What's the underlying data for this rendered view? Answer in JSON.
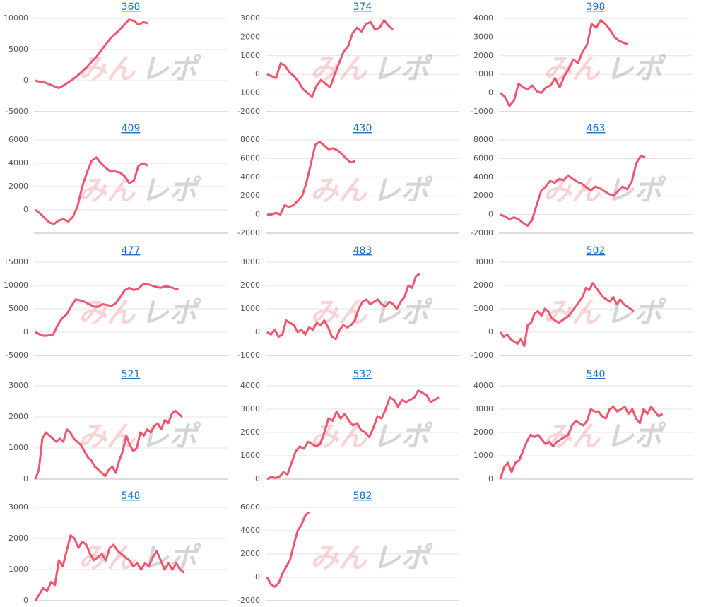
{
  "watermark": {
    "left": "みん",
    "right": "レポ"
  },
  "chart_data": [
    {
      "type": "line",
      "title": "368",
      "color": "#f2566f",
      "ylim": [
        -5000,
        10000
      ],
      "yticks": [
        -5000,
        0,
        5000,
        10000
      ],
      "grid": true,
      "values": [
        0,
        -200,
        -300,
        -600,
        -900,
        -1200,
        -800,
        -300,
        200,
        800,
        1500,
        2200,
        3000,
        3800,
        4800,
        5800,
        6800,
        7500,
        8200,
        9000,
        9800,
        9600,
        9000,
        9400,
        9200
      ]
    },
    {
      "type": "line",
      "title": "374",
      "color": "#f2566f",
      "ylim": [
        -2000,
        3000
      ],
      "yticks": [
        -2000,
        -1000,
        0,
        1000,
        2000,
        3000
      ],
      "grid": true,
      "values": [
        0,
        -100,
        -200,
        600,
        450,
        100,
        -100,
        -400,
        -800,
        -1000,
        -1200,
        -600,
        -300,
        -500,
        -700,
        0,
        600,
        1200,
        1500,
        2200,
        2500,
        2300,
        2700,
        2800,
        2400,
        2500,
        2900,
        2600,
        2400
      ]
    },
    {
      "type": "line",
      "title": "398",
      "color": "#f2566f",
      "ylim": [
        -1000,
        4000
      ],
      "yticks": [
        -1000,
        0,
        1000,
        2000,
        3000,
        4000
      ],
      "grid": true,
      "values": [
        0,
        -200,
        -700,
        -400,
        500,
        300,
        200,
        400,
        100,
        0,
        300,
        400,
        800,
        300,
        900,
        1300,
        1800,
        1600,
        2200,
        2600,
        3700,
        3500,
        3900,
        3700,
        3400,
        3000,
        2800,
        2700,
        2600
      ]
    },
    {
      "type": "line",
      "title": "409",
      "color": "#f2566f",
      "ylim": [
        -2000,
        6000
      ],
      "yticks": [
        0,
        2000,
        4000,
        6000
      ],
      "grid": true,
      "values": [
        0,
        -300,
        -700,
        -1100,
        -1200,
        -900,
        -800,
        -1000,
        -600,
        300,
        2000,
        3200,
        4200,
        4500,
        4000,
        3600,
        3300,
        3300,
        3200,
        2900,
        2300,
        2500,
        3800,
        4000,
        3800
      ]
    },
    {
      "type": "line",
      "title": "430",
      "color": "#f2566f",
      "ylim": [
        -2000,
        8000
      ],
      "yticks": [
        -2000,
        0,
        2000,
        4000,
        6000,
        8000
      ],
      "grid": true,
      "values": [
        0,
        0,
        200,
        0,
        1000,
        800,
        1000,
        1500,
        2000,
        3500,
        5500,
        7500,
        7800,
        7400,
        7000,
        7100,
        6900,
        6500,
        6000,
        5600,
        5700
      ]
    },
    {
      "type": "line",
      "title": "463",
      "color": "#f2566f",
      "ylim": [
        -2000,
        8000
      ],
      "yticks": [
        -2000,
        0,
        2000,
        4000,
        6000,
        8000
      ],
      "grid": true,
      "values": [
        0,
        -200,
        -500,
        -300,
        -500,
        -900,
        -1200,
        -600,
        1000,
        2500,
        3000,
        3600,
        3400,
        3800,
        3700,
        4200,
        3800,
        3500,
        3300,
        2900,
        2600,
        3000,
        2800,
        2500,
        2200,
        2000,
        2500,
        3000,
        2700,
        3500,
        5500,
        6300,
        6100
      ]
    },
    {
      "type": "line",
      "title": "477",
      "color": "#f2566f",
      "ylim": [
        -5000,
        15000
      ],
      "yticks": [
        -5000,
        0,
        5000,
        10000,
        15000
      ],
      "grid": true,
      "values": [
        0,
        -500,
        -800,
        -700,
        -500,
        1500,
        3000,
        3800,
        5500,
        7000,
        6800,
        6500,
        6000,
        5500,
        5400,
        6000,
        5800,
        5600,
        6200,
        7500,
        9000,
        9500,
        9000,
        9300,
        10200,
        10300,
        10000,
        9700,
        9500,
        9800,
        9700,
        9400,
        9200
      ]
    },
    {
      "type": "line",
      "title": "483",
      "color": "#f2566f",
      "ylim": [
        -1000,
        3000
      ],
      "yticks": [
        -1000,
        0,
        1000,
        2000,
        3000
      ],
      "grid": true,
      "values": [
        0,
        -100,
        100,
        -200,
        -100,
        500,
        400,
        300,
        0,
        100,
        -100,
        200,
        100,
        400,
        300,
        500,
        200,
        -200,
        -300,
        100,
        300,
        200,
        300,
        500,
        1000,
        1300,
        1400,
        1200,
        1300,
        1400,
        1200,
        1100,
        1300,
        1200,
        1000,
        1300,
        1500,
        2000,
        1900,
        2400,
        2500
      ]
    },
    {
      "type": "line",
      "title": "502",
      "color": "#f2566f",
      "ylim": [
        -1000,
        3000
      ],
      "yticks": [
        -1000,
        0,
        1000,
        2000,
        3000
      ],
      "grid": true,
      "values": [
        0,
        -200,
        -100,
        -300,
        -400,
        -500,
        -300,
        -600,
        300,
        400,
        800,
        900,
        700,
        1000,
        900,
        600,
        500,
        400,
        500,
        600,
        700,
        900,
        1100,
        1300,
        1500,
        1900,
        1800,
        2100,
        1900,
        1700,
        1500,
        1400,
        1300,
        1500,
        1200,
        1400,
        1200,
        1100,
        1000,
        900
      ]
    },
    {
      "type": "line",
      "title": "521",
      "color": "#f2566f",
      "ylim": [
        0,
        3000
      ],
      "yticks": [
        0,
        1000,
        2000,
        3000
      ],
      "grid": true,
      "values": [
        0,
        300,
        1300,
        1500,
        1400,
        1300,
        1200,
        1300,
        1200,
        1600,
        1500,
        1300,
        1200,
        1100,
        900,
        700,
        600,
        400,
        300,
        200,
        100,
        300,
        400,
        200,
        600,
        900,
        1400,
        1100,
        900,
        1000,
        1500,
        1400,
        1600,
        1500,
        1700,
        1800,
        1600,
        1900,
        1800,
        2100,
        2200,
        2100,
        2000
      ]
    },
    {
      "type": "line",
      "title": "532",
      "color": "#f2566f",
      "ylim": [
        0,
        4000
      ],
      "yticks": [
        0,
        1000,
        2000,
        3000,
        4000
      ],
      "grid": true,
      "values": [
        0,
        100,
        50,
        100,
        300,
        200,
        700,
        1200,
        1400,
        1300,
        1600,
        1500,
        1400,
        1500,
        2000,
        2600,
        2500,
        2900,
        2600,
        2800,
        2500,
        2300,
        2400,
        2100,
        2000,
        1800,
        2200,
        2700,
        2600,
        3000,
        3500,
        3400,
        3100,
        3400,
        3300,
        3400,
        3500,
        3800,
        3700,
        3600,
        3300,
        3400,
        3500
      ]
    },
    {
      "type": "line",
      "title": "540",
      "color": "#f2566f",
      "ylim": [
        0,
        4000
      ],
      "yticks": [
        0,
        1000,
        2000,
        3000,
        4000
      ],
      "grid": true,
      "values": [
        0,
        500,
        700,
        300,
        700,
        800,
        1200,
        1600,
        1900,
        1800,
        1900,
        1700,
        1500,
        1600,
        1400,
        1600,
        1700,
        1800,
        1900,
        2300,
        2500,
        2400,
        2300,
        2500,
        3000,
        2900,
        2900,
        2700,
        2600,
        3000,
        3100,
        2900,
        3000,
        3100,
        2800,
        3000,
        2600,
        2400,
        3000,
        2800,
        3100,
        2900,
        2700,
        2800
      ]
    },
    {
      "type": "line",
      "title": "548",
      "color": "#f2566f",
      "ylim": [
        0,
        3000
      ],
      "yticks": [
        0,
        1000,
        2000,
        3000
      ],
      "grid": true,
      "values": [
        0,
        200,
        400,
        300,
        600,
        500,
        1300,
        1100,
        1600,
        2100,
        2000,
        1700,
        1900,
        1800,
        1500,
        1300,
        1400,
        1500,
        1300,
        1700,
        1800,
        1600,
        1500,
        1400,
        1300,
        1100,
        1200,
        1000,
        1200,
        1100,
        1400,
        1600,
        1300,
        1000,
        1200,
        1000,
        1200,
        1000,
        900
      ]
    },
    {
      "type": "line",
      "title": "582",
      "color": "#f2566f",
      "ylim": [
        -2000,
        6000
      ],
      "yticks": [
        -2000,
        0,
        2000,
        4000,
        6000
      ],
      "grid": true,
      "values": [
        0,
        -600,
        -800,
        -500,
        300,
        900,
        1500,
        2800,
        4000,
        4500,
        5300,
        5600
      ]
    }
  ]
}
